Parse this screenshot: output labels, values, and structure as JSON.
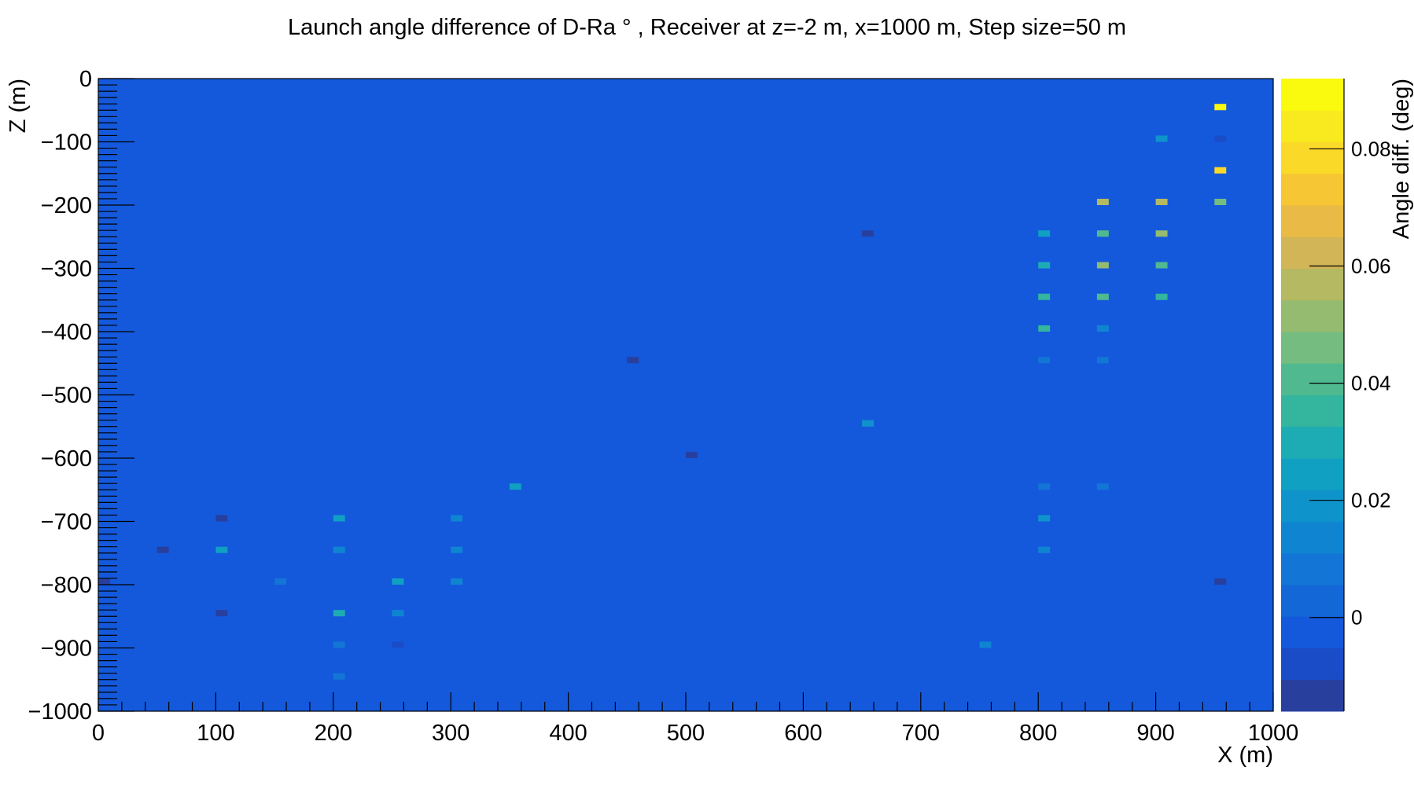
{
  "chart_data": {
    "type": "heatmap",
    "title": "Launch angle difference of D-Ra ° , Receiver at z=-2 m, x=1000 m, Step size=50 m",
    "xlabel": "X (m)",
    "ylabel": "Z (m)",
    "zlabel": "Angle diff. (deg)",
    "xlim": [
      0,
      1000
    ],
    "ylim": [
      -1000,
      0
    ],
    "zlim": [
      -0.016,
      0.092
    ],
    "x_ticks": [
      0,
      100,
      200,
      300,
      400,
      500,
      600,
      700,
      800,
      900,
      1000
    ],
    "x_tick_labels": [
      "0",
      "100",
      "200",
      "300",
      "400",
      "500",
      "600",
      "700",
      "800",
      "900",
      "1000"
    ],
    "y_ticks": [
      0,
      -100,
      -200,
      -300,
      -400,
      -500,
      -600,
      -700,
      -800,
      -900,
      -1000
    ],
    "y_tick_labels": [
      "0",
      "−100",
      "−200",
      "−300",
      "−400",
      "−500",
      "−600",
      "−700",
      "−800",
      "−900",
      "−1000"
    ],
    "z_ticks": [
      0,
      0.02,
      0.04,
      0.06,
      0.08
    ],
    "z_tick_labels": [
      "0",
      "0.02",
      "0.04",
      "0.06",
      "0.08"
    ],
    "bin_width_x": 10,
    "bin_height_z": 10,
    "background_value": 0.0,
    "palette": [
      "#283f9e",
      "#1a4cc8",
      "#1459dc",
      "#1367d6",
      "#1375d5",
      "#0f85d2",
      "#0e94cb",
      "#10a0c2",
      "#1eacb4",
      "#33b59e",
      "#51b990",
      "#74bc7f",
      "#95bb70",
      "#b5b961",
      "#d1b556",
      "#e9ba45",
      "#f7c634",
      "#fbd929",
      "#f9ea1f",
      "#fafa0e"
    ],
    "cells": [
      {
        "x": 955,
        "z": -45,
        "v": 0.09
      },
      {
        "x": 905,
        "z": -95,
        "v": 0.018
      },
      {
        "x": 955,
        "z": -95,
        "v": -0.008
      },
      {
        "x": 805,
        "z": -145,
        "v": -0.005
      },
      {
        "x": 905,
        "z": -145,
        "v": -0.005
      },
      {
        "x": 955,
        "z": -145,
        "v": 0.077
      },
      {
        "x": 855,
        "z": -195,
        "v": 0.058
      },
      {
        "x": 905,
        "z": -195,
        "v": 0.058
      },
      {
        "x": 955,
        "z": -195,
        "v": 0.047
      },
      {
        "x": 655,
        "z": -245,
        "v": -0.015
      },
      {
        "x": 805,
        "z": -245,
        "v": 0.027
      },
      {
        "x": 855,
        "z": -245,
        "v": 0.043
      },
      {
        "x": 905,
        "z": -245,
        "v": 0.053
      },
      {
        "x": 805,
        "z": -295,
        "v": 0.032
      },
      {
        "x": 855,
        "z": -295,
        "v": 0.05
      },
      {
        "x": 905,
        "z": -295,
        "v": 0.043
      },
      {
        "x": 805,
        "z": -345,
        "v": 0.035
      },
      {
        "x": 855,
        "z": -345,
        "v": 0.04
      },
      {
        "x": 905,
        "z": -345,
        "v": 0.037
      },
      {
        "x": 805,
        "z": -395,
        "v": 0.035
      },
      {
        "x": 855,
        "z": -395,
        "v": 0.012
      },
      {
        "x": 455,
        "z": -445,
        "v": -0.015
      },
      {
        "x": 805,
        "z": -445,
        "v": 0.01
      },
      {
        "x": 855,
        "z": -445,
        "v": 0.008
      },
      {
        "x": 655,
        "z": -545,
        "v": 0.018
      },
      {
        "x": 505,
        "z": -595,
        "v": -0.015
      },
      {
        "x": 805,
        "z": -595,
        "v": -0.005
      },
      {
        "x": 105,
        "z": -645,
        "v": -0.005
      },
      {
        "x": 155,
        "z": -645,
        "v": -0.005
      },
      {
        "x": 255,
        "z": -645,
        "v": -0.005
      },
      {
        "x": 355,
        "z": -645,
        "v": 0.025
      },
      {
        "x": 805,
        "z": -645,
        "v": 0.01
      },
      {
        "x": 855,
        "z": -645,
        "v": 0.008
      },
      {
        "x": 105,
        "z": -695,
        "v": -0.012
      },
      {
        "x": 205,
        "z": -695,
        "v": 0.027
      },
      {
        "x": 305,
        "z": -695,
        "v": 0.015
      },
      {
        "x": 805,
        "z": -695,
        "v": 0.018
      },
      {
        "x": 55,
        "z": -745,
        "v": -0.012
      },
      {
        "x": 105,
        "z": -745,
        "v": 0.027
      },
      {
        "x": 205,
        "z": -745,
        "v": 0.012
      },
      {
        "x": 305,
        "z": -745,
        "v": 0.015
      },
      {
        "x": 355,
        "z": -745,
        "v": -0.005
      },
      {
        "x": 805,
        "z": -745,
        "v": 0.012
      },
      {
        "x": 5,
        "z": -795,
        "v": -0.012
      },
      {
        "x": 155,
        "z": -795,
        "v": 0.01
      },
      {
        "x": 255,
        "z": -795,
        "v": 0.027
      },
      {
        "x": 305,
        "z": -795,
        "v": 0.015
      },
      {
        "x": 955,
        "z": -795,
        "v": -0.012
      },
      {
        "x": 105,
        "z": -845,
        "v": -0.015
      },
      {
        "x": 205,
        "z": -845,
        "v": 0.032
      },
      {
        "x": 255,
        "z": -845,
        "v": 0.015
      },
      {
        "x": 305,
        "z": -845,
        "v": -0.005
      },
      {
        "x": 205,
        "z": -895,
        "v": 0.01
      },
      {
        "x": 255,
        "z": -895,
        "v": -0.008
      },
      {
        "x": 755,
        "z": -895,
        "v": 0.012
      },
      {
        "x": 205,
        "z": -945,
        "v": 0.01
      },
      {
        "x": 255,
        "z": -945,
        "v": -0.005
      }
    ]
  }
}
